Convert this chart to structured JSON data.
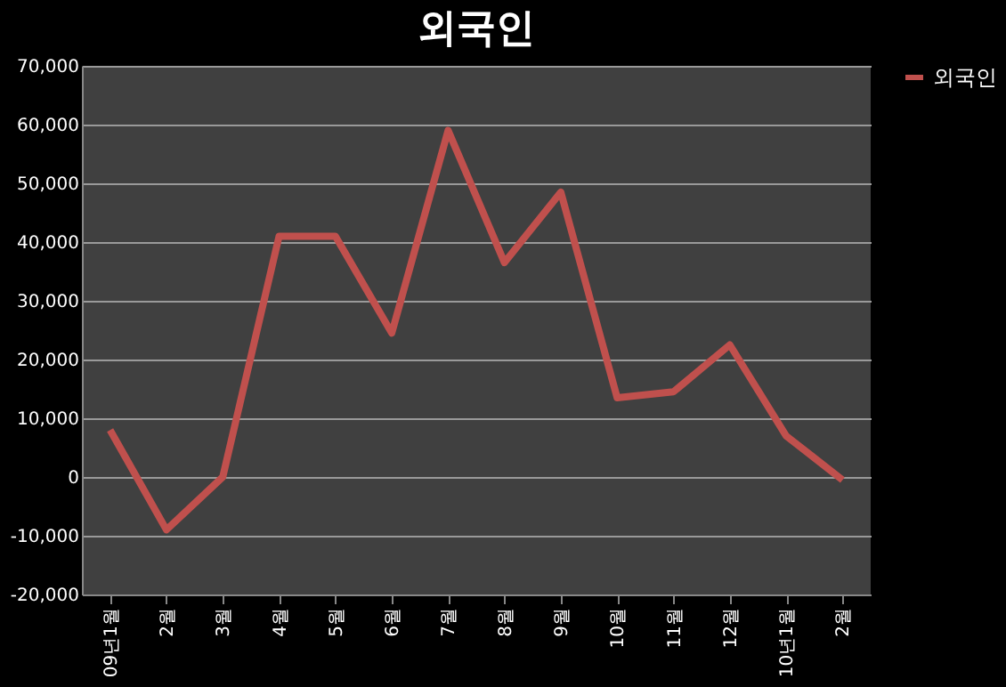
{
  "chart_data": {
    "type": "line",
    "title": "외국인",
    "categories": [
      "09년1월",
      "2월",
      "3월",
      "4월",
      "5월",
      "6월",
      "7월",
      "8월",
      "9월",
      "10월",
      "11월",
      "12월",
      "10년1월",
      "2월"
    ],
    "series": [
      {
        "name": "외국인",
        "color": "#c0504d",
        "values": [
          8000,
          -9000,
          0,
          41000,
          41000,
          24500,
          59000,
          36500,
          48500,
          13500,
          14500,
          22500,
          7000,
          -500
        ]
      }
    ],
    "ylim": [
      -20000,
      70000
    ],
    "yticks": [
      {
        "value": -20000,
        "label": "-20,000"
      },
      {
        "value": -10000,
        "label": "-10,000"
      },
      {
        "value": 0,
        "label": "0"
      },
      {
        "value": 10000,
        "label": "10,000"
      },
      {
        "value": 20000,
        "label": "20,000"
      },
      {
        "value": 30000,
        "label": "30,000"
      },
      {
        "value": 40000,
        "label": "40,000"
      },
      {
        "value": 50000,
        "label": "50,000"
      },
      {
        "value": 60000,
        "label": "60,000"
      },
      {
        "value": 70000,
        "label": "70,000"
      }
    ],
    "grid": "y",
    "legend": "right",
    "marker": "none",
    "line_style": "solid"
  }
}
